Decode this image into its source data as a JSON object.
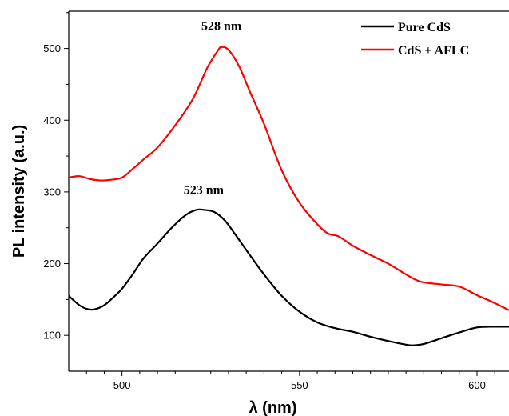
{
  "chart_data": {
    "type": "line",
    "xlabel": "λ (nm)",
    "ylabel": "PL intensity (a.u.)",
    "xlim": [
      485,
      609
    ],
    "ylim": [
      50,
      552
    ],
    "xticks": [
      500,
      550,
      600
    ],
    "yticks": [
      100,
      200,
      300,
      400,
      500
    ],
    "legend": "top-right",
    "grid": false,
    "series": [
      {
        "name": "Pure CdS",
        "color": "#000000",
        "x": [
          485,
          488,
          490,
          492,
          495,
          498,
          500,
          503,
          506,
          510,
          514,
          518,
          521,
          523,
          526,
          529,
          532,
          536,
          540,
          545,
          550,
          555,
          560,
          565,
          570,
          575,
          580,
          582,
          585,
          590,
          595,
          600,
          605,
          609
        ],
        "y": [
          155,
          142,
          137,
          136,
          142,
          155,
          165,
          185,
          207,
          228,
          250,
          268,
          275,
          275,
          272,
          260,
          240,
          212,
          185,
          155,
          133,
          118,
          110,
          105,
          98,
          92,
          87,
          86,
          88,
          96,
          104,
          111,
          112,
          112
        ]
      },
      {
        "name": "CdS + AFLC",
        "color": "#ff0000",
        "x": [
          485,
          488,
          491,
          494,
          497,
          500,
          503,
          506,
          510,
          515,
          520,
          524,
          527,
          528,
          530,
          533,
          536,
          540,
          545,
          550,
          555,
          558,
          561,
          565,
          570,
          575,
          580,
          584,
          590,
          595,
          600,
          605,
          609
        ],
        "y": [
          320,
          322,
          318,
          316,
          317,
          320,
          332,
          345,
          362,
          393,
          430,
          473,
          497,
          502,
          498,
          475,
          440,
          395,
          330,
          285,
          255,
          242,
          238,
          225,
          212,
          200,
          185,
          175,
          171,
          168,
          156,
          145,
          135
        ]
      }
    ],
    "annotations": [
      {
        "text": "528 nm",
        "x": 528,
        "y": 526
      },
      {
        "text": "523 nm",
        "x": 523,
        "y": 297
      }
    ]
  }
}
